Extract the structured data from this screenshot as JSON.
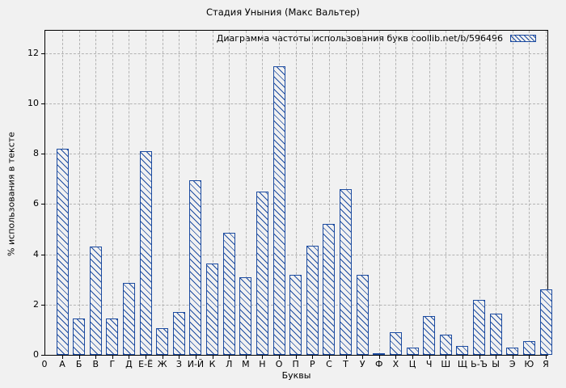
{
  "title": "Стадия Уныния (Макс Вальтер)",
  "legend": {
    "label": "Диаграмма частоты использования букв coollib.net/b/596496",
    "swatch": "blue-diagonal-hatch",
    "position": "top-right"
  },
  "axes": {
    "ylabel": "% использования в тексте",
    "xlabel": "Буквы",
    "yticks": [
      0,
      2,
      4,
      6,
      8,
      10,
      12
    ],
    "origin_label": "0"
  },
  "colors": {
    "bar": "#1c4ba0",
    "background": "#f1f1f1",
    "grid": "#b3b3b3",
    "frame": "#000000"
  },
  "chart_data": {
    "type": "bar",
    "title": "Стадия Уныния (Макс Вальтер)",
    "legend": "Диаграмма частоты использования букв coollib.net/b/596496",
    "xlabel": "Буквы",
    "ylabel": "% использования в тексте",
    "ylim": [
      0,
      12.9
    ],
    "grid": true,
    "legend_position": "top-right",
    "hatch": "backslash-diagonal",
    "categories": [
      "А",
      "Б",
      "В",
      "Г",
      "Д",
      "Е-Ё",
      "Ж",
      "З",
      "И-Й",
      "К",
      "Л",
      "М",
      "Н",
      "О",
      "П",
      "Р",
      "С",
      "Т",
      "У",
      "Ф",
      "Х",
      "Ц",
      "Ч",
      "Ш",
      "Щ",
      "Ь-Ъ",
      "Ы",
      "Э",
      "Ю",
      "Я"
    ],
    "values": [
      8.2,
      1.45,
      4.3,
      1.45,
      2.85,
      8.1,
      1.05,
      1.7,
      6.95,
      3.65,
      4.85,
      3.1,
      6.5,
      11.5,
      3.2,
      4.35,
      5.2,
      6.6,
      3.2,
      0.08,
      0.9,
      0.3,
      1.55,
      0.8,
      0.35,
      2.2,
      1.65,
      0.3,
      0.55,
      2.6
    ]
  }
}
